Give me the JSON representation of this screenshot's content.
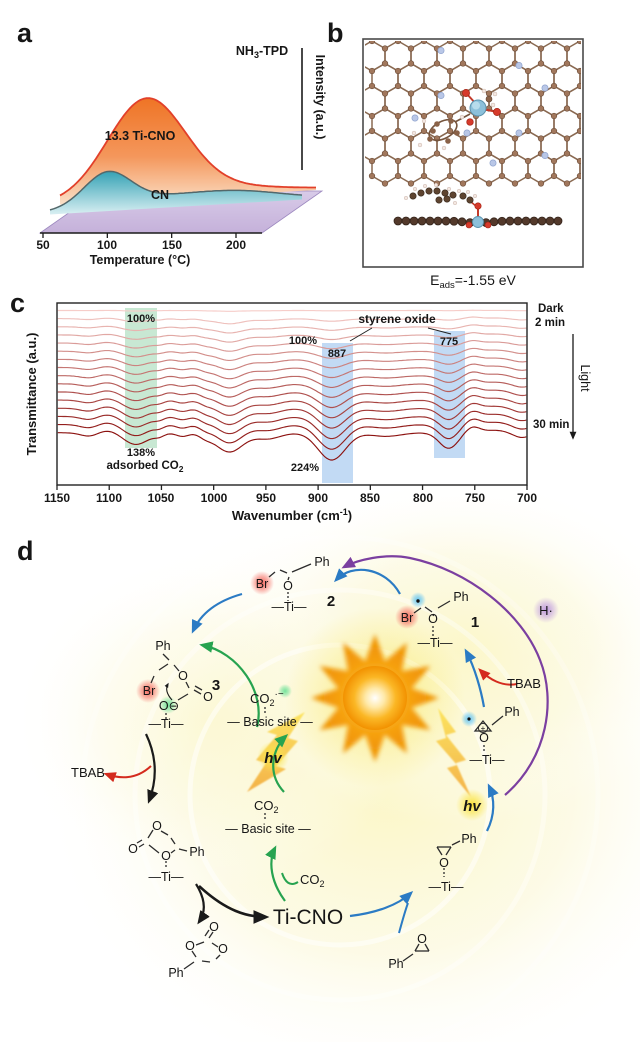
{
  "figure": {
    "panels": {
      "a": {
        "label": "a",
        "title_pre": "NH",
        "title_sub": "3",
        "title_post": "-TPD",
        "ylabel": "Intensity (a.u.)",
        "xlabel": "Temperature (°C)",
        "xticks": [
          "50",
          "100",
          "150",
          "200"
        ],
        "series1_label": "13.3 Ti-CNO",
        "series2_label": "CN",
        "colors": {
          "series1": "#F0802E",
          "series2": "#45A8BC",
          "base": "#CBB9DD"
        }
      },
      "b": {
        "label": "b",
        "caption_pre": "E",
        "caption_sub": "ads",
        "caption_post": "=-1.55 eV"
      },
      "c": {
        "label": "c",
        "ylabel": "Transmittance (a.u.)",
        "xlabel_pre": "Wavenumber (cm",
        "xlabel_sup": "-1",
        "xlabel_post": ")",
        "xticks": [
          "1150",
          "1100",
          "1050",
          "1000",
          "950",
          "900",
          "850",
          "800",
          "750",
          "700"
        ],
        "green_top_pct": "100%",
        "green_bottom_pct": "138%",
        "adsorbed_pre": "adsorbed CO",
        "adsorbed_sub": "2",
        "pink_pct": "100%",
        "band_887": "887",
        "band_775": "775",
        "styrene_label": "styrene oxide",
        "pct_224": "224%",
        "legend": {
          "dark": "Dark",
          "t2": "2 min",
          "light": "Light",
          "t30": "30 min"
        },
        "colors": {
          "green_box": "#C2E5CE",
          "blue_box": "#AECDF0",
          "first_curve": "#F6CDC9",
          "last_curve": "#8C1210"
        }
      },
      "d": {
        "label": "d",
        "num1": "1",
        "num2": "2",
        "num3": "3",
        "ph": "Ph",
        "br": "Br",
        "o": "O",
        "ti": "—Ti—",
        "o_minus": "O⊖",
        "plus": "+",
        "h_radical": "H·",
        "hv": "hv",
        "tbab": "TBAB",
        "ti_cno": "Ti-CNO",
        "co2_pre": "CO",
        "co2_sub": "2",
        "co2_rad_sup": "·−",
        "basic_site": "— Basic site —",
        "colors": {
          "blue_arrow": "#2B7BC4",
          "green_arrow": "#27A350",
          "red_arrow": "#D42B1E",
          "purple_arrow": "#7B3FA0"
        }
      }
    }
  },
  "chart_data": [
    {
      "panel": "a",
      "type": "area",
      "title": "NH3-TPD",
      "xlabel": "Temperature (°C)",
      "ylabel": "Intensity (a.u.)",
      "xlim": [
        50,
        200
      ],
      "xticks": [
        50,
        100,
        150,
        200
      ],
      "grid": false,
      "series": [
        {
          "name": "13.3 Ti-CNO",
          "peak_temp_c": 130,
          "rel_amplitude": 1.0,
          "width_c": 30,
          "color": "#F0802E"
        },
        {
          "name": "CN",
          "peak_temp_c": 100,
          "rel_amplitude": 0.34,
          "width_c": 18,
          "color": "#45A8BC"
        }
      ]
    },
    {
      "panel": "c",
      "type": "line",
      "xlabel": "Wavenumber (cm-1)",
      "ylabel": "Transmittance (a.u.)",
      "xlim": [
        1150,
        700
      ],
      "xticks": [
        1150,
        1100,
        1050,
        1000,
        950,
        900,
        850,
        800,
        750,
        700
      ],
      "n_spectra": 16,
      "series_order": [
        "Dark",
        "2 min",
        "… every 2 min …",
        "30 min"
      ],
      "band_centers_cm": [
        1118,
        1075,
        1052,
        1030,
        1008,
        985,
        948,
        887,
        835,
        775,
        705
      ],
      "highlight_bands": [
        {
          "center_cm": 1075,
          "label": "adsorbed CO2",
          "box": "green",
          "growth_start": "100%",
          "growth_end": "138%"
        },
        {
          "center_cm": 887,
          "label": "styrene oxide",
          "box": "blue",
          "growth_start": "100%",
          "growth_end": "224%"
        },
        {
          "center_cm": 775,
          "label": "styrene oxide",
          "box": "blue"
        }
      ],
      "color_first": "#F6CDC9",
      "color_last": "#8C1210"
    }
  ]
}
